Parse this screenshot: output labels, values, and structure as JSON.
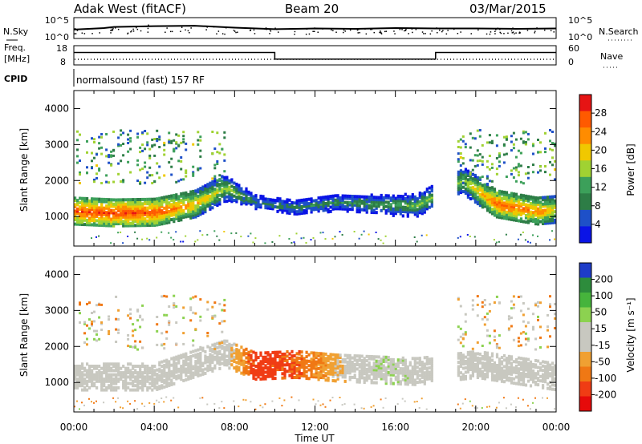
{
  "header": {
    "station": "Adak West (fitACF)",
    "beam": "Beam 20",
    "date": "03/Mar/2015"
  },
  "top_panel": {
    "left_label": "N.Sky",
    "right_label": "N.Search",
    "yticks_left": [
      "10^5",
      "10^0"
    ],
    "yticks_right": [
      "10^5",
      "10^0"
    ]
  },
  "freq_panel": {
    "left_label_line1": "Freq.",
    "left_label_line2": "[MHz]",
    "right_label": "Nave",
    "yticks_left": [
      "18",
      "8"
    ],
    "yticks_right": [
      "60",
      "0"
    ],
    "cpid_label": "CPID",
    "cpid_text": "normalsound (fast) 157 RF"
  },
  "colors": {
    "power_scale": [
      "#0a14e6",
      "#1e50c8",
      "#2d7d46",
      "#3ca05a",
      "#a0d232",
      "#f0c800",
      "#ff8c00",
      "#ff5a00",
      "#e61414"
    ],
    "velocity_scale": [
      "#1e3cc8",
      "#2d8c3c",
      "#46b43c",
      "#8cd250",
      "#c8c8c0",
      "#c8c8c0",
      "#f0a032",
      "#f07814",
      "#f03c14",
      "#e60a0a"
    ]
  },
  "chart_data": [
    {
      "type": "line",
      "panel": "noise",
      "x": [
        0,
        1.5,
        2,
        4,
        6,
        8,
        10,
        12,
        14,
        16,
        18,
        20,
        22,
        24
      ],
      "series": [
        {
          "name": "N.Sky",
          "values": [
            2.1,
            2.5,
            2.8,
            3.0,
            3.1,
            2.6,
            2.2,
            2.4,
            2.3,
            2.5,
            2.4,
            2.4,
            2.3,
            2.4
          ]
        }
      ],
      "ylim": [
        0,
        5
      ]
    },
    {
      "type": "line",
      "panel": "frequency",
      "x": [
        0,
        10,
        10,
        18,
        18,
        24
      ],
      "series": [
        {
          "name": "Freq.",
          "values": [
            14.6,
            14.6,
            10.8,
            10.8,
            14.6,
            14.6
          ]
        }
      ],
      "ylim": [
        8,
        18
      ]
    },
    {
      "type": "heatmap",
      "title": "Power",
      "xlabel": "Time UT",
      "ylabel": "Slant Range [km]",
      "xlim": [
        0,
        24
      ],
      "ylim": [
        180,
        4500
      ],
      "x_tick_labels": [
        "00:00",
        "04:00",
        "08:00",
        "12:00",
        "16:00",
        "20:00",
        "00:00"
      ],
      "y_tick_labels": [
        "1000",
        "2000",
        "3000",
        "4000"
      ],
      "colorbar": {
        "label": "Power [dB]",
        "range": [
          0,
          32
        ],
        "tick_labels": [
          "4",
          "8",
          "12",
          "16",
          "20",
          "24",
          "28"
        ]
      },
      "echo_band_km": [
        {
          "t": 0,
          "range": 1150,
          "power": 27
        },
        {
          "t": 2,
          "range": 1100,
          "power": 28
        },
        {
          "t": 4,
          "range": 1120,
          "power": 27
        },
        {
          "t": 6,
          "range": 1350,
          "power": 22
        },
        {
          "t": 7.5,
          "range": 1800,
          "power": 16
        },
        {
          "t": 9,
          "range": 1400,
          "power": 8
        },
        {
          "t": 11,
          "range": 1250,
          "power": 9
        },
        {
          "t": 13,
          "range": 1400,
          "power": 10
        },
        {
          "t": 15,
          "range": 1350,
          "power": 11
        },
        {
          "t": 17,
          "range": 1300,
          "power": 14
        },
        {
          "t": 19.3,
          "range": 2000,
          "power": 16
        },
        {
          "t": 21,
          "range": 1350,
          "power": 26
        },
        {
          "t": 23,
          "range": 1150,
          "power": 24
        },
        {
          "t": 24,
          "range": 1200,
          "power": 20
        }
      ]
    },
    {
      "type": "heatmap",
      "title": "Velocity",
      "xlabel": "Time UT",
      "ylabel": "Slant Range [km]",
      "xlim": [
        0,
        24
      ],
      "ylim": [
        180,
        4500
      ],
      "x_tick_labels": [
        "00:00",
        "04:00",
        "08:00",
        "12:00",
        "16:00",
        "20:00",
        "00:00"
      ],
      "y_tick_labels": [
        "1000",
        "2000",
        "3000",
        "4000"
      ],
      "colorbar": {
        "label": "Velocity [m s⁻¹]",
        "range": [
          -250,
          250
        ],
        "tick_labels": [
          "200",
          "100",
          "50",
          "15",
          "-15",
          "-50",
          "-100",
          "-200"
        ]
      },
      "echo_band_km": [
        {
          "t": 0,
          "range": 1150,
          "velocity": 0
        },
        {
          "t": 4,
          "range": 1150,
          "velocity": 0
        },
        {
          "t": 7.5,
          "range": 1800,
          "velocity": -5
        },
        {
          "t": 9,
          "range": 1450,
          "velocity": -180
        },
        {
          "t": 11,
          "range": 1500,
          "velocity": -150
        },
        {
          "t": 13,
          "range": 1400,
          "velocity": -60
        },
        {
          "t": 15,
          "range": 1350,
          "velocity": 40
        },
        {
          "t": 17,
          "range": 1300,
          "velocity": 30
        },
        {
          "t": 20,
          "range": 1500,
          "velocity": 0
        },
        {
          "t": 24,
          "range": 1150,
          "velocity": 0
        }
      ]
    }
  ]
}
